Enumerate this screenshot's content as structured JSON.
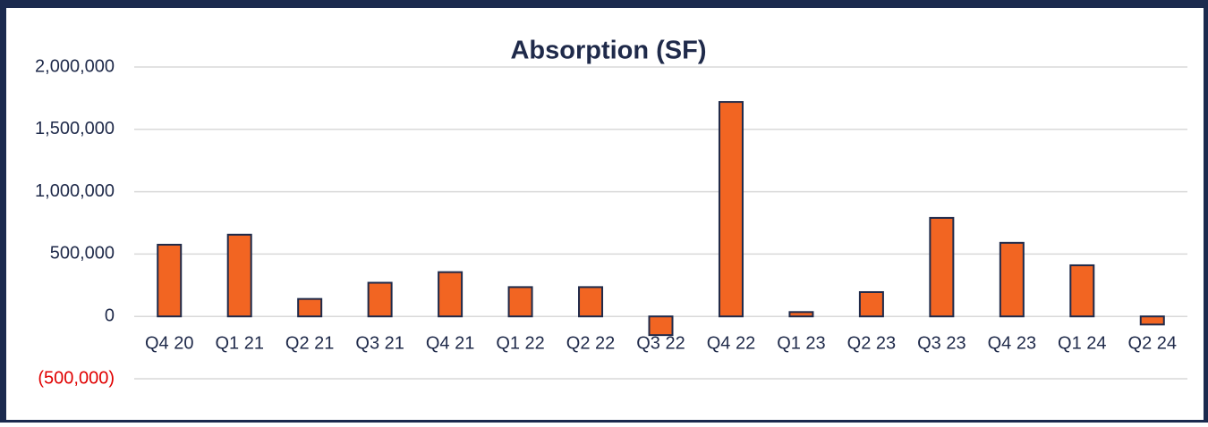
{
  "chart_data": {
    "type": "bar",
    "title": "Absorption (SF)",
    "categories": [
      "Q4 20",
      "Q1 21",
      "Q2 21",
      "Q3 21",
      "Q4 21",
      "Q1 22",
      "Q2 22",
      "Q3 22",
      "Q4 22",
      "Q1 23",
      "Q2 23",
      "Q3 23",
      "Q4 23",
      "Q1 24",
      "Q2 24"
    ],
    "values": [
      575000,
      655000,
      140000,
      270000,
      355000,
      235000,
      235000,
      -150000,
      1720000,
      35000,
      195000,
      790000,
      590000,
      410000,
      -65000
    ],
    "color": "#f26522",
    "edge_color": "#1f2a4a",
    "ylim": [
      -500000,
      2000000
    ],
    "yticks": [
      {
        "value": -500000,
        "label": "(500,000)"
      },
      0,
      {
        "value": 500000,
        "label": "500,000"
      },
      {
        "value": 1000000,
        "label": "1,000,000"
      },
      {
        "value": 1500000,
        "label": "1,500,000"
      },
      {
        "value": 2000000,
        "label": "2,000,000"
      }
    ],
    "negative_tick_color": "#e00000",
    "grid": true
  }
}
